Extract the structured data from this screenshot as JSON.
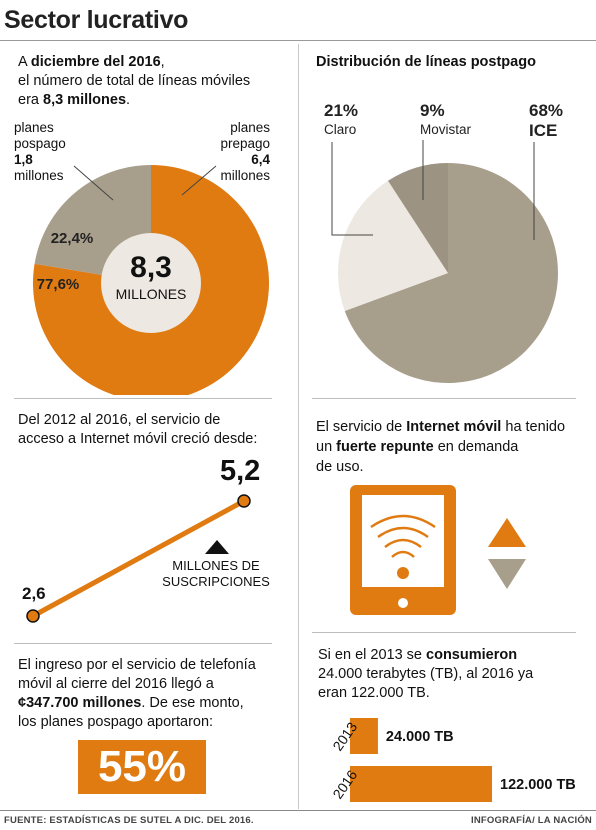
{
  "title": "Sector lucrativo",
  "footer": {
    "source": "FUENTE: ESTADÍSTICAS DE SUTEL A DIC. DEL 2016.",
    "credit": "INFOGRAFÍA/ LA NACIÓN"
  },
  "colors": {
    "orange": "#e07b12",
    "gray": "#a89e8c",
    "cream": "#ede8e1",
    "dark_gray": "#9c9382",
    "light": "#efeae3"
  },
  "lines_total": {
    "intro_pre": "A",
    "intro_bold": "diciembre del 2016",
    "intro_line2": "el número de total de líneas móviles",
    "intro_line3_pre": "era",
    "intro_line3_bold": "8,3 millones",
    "center_value": "8,3",
    "center_unit": "MILLONES",
    "pospago_label_1": "planes",
    "pospago_label_2": "pospago",
    "pospago_value": "1,8",
    "pospago_unit": "millones",
    "prepago_label_1": "planes",
    "prepago_label_2": "prepago",
    "prepago_value": "6,4",
    "prepago_unit": "millones",
    "pospago_pct": "22,4%",
    "prepago_pct": "77,6%"
  },
  "postpago_dist": {
    "heading": "Distribución de líneas postpago",
    "claro_pct": "21%",
    "claro_name": "Claro",
    "movistar_pct": "9%",
    "movistar_name": "Movistar",
    "ice_pct": "68%",
    "ice_name": "ICE"
  },
  "internet_growth": {
    "text_1": "Del 2012 al 2016, el servicio de",
    "text_2": "acceso a Internet móvil creció desde:",
    "start_value": "2,6",
    "end_value": "5,2",
    "unit_1": "MILLONES DE",
    "unit_2": "SUSCRIPCIONES"
  },
  "internet_demand": {
    "t1_pre": "El servicio de",
    "t1_bold": "Internet móvil",
    "t1_post": "ha tenido",
    "t2_pre": "un",
    "t2_bold": "fuerte repunte",
    "t2_post": "en demanda",
    "t3": "de uso."
  },
  "revenue": {
    "t1": "El ingreso por el servicio de telefonía",
    "t2": "móvil al cierre del 2016 llegó a",
    "t3_bold": "¢347.700 millones",
    "t3_post": ". De ese monto,",
    "t4": "los planes pospago aportaron:",
    "pct": "55%"
  },
  "data_consumption": {
    "t1_pre": "Si en el 2013 se",
    "t1_bold": "consumieron",
    "t2": "24.000 terabytes (TB), al 2016 ya",
    "t3": "eran 122.000 TB."
  },
  "chart_data": [
    {
      "type": "pie",
      "title": "",
      "labels": [
        "planes prepago",
        "planes pospago"
      ],
      "values": [
        77.6,
        22.4
      ],
      "center_text": "8,3 MILLONES"
    },
    {
      "type": "pie",
      "title": "Distribución de líneas postpago",
      "labels": [
        "ICE",
        "Claro",
        "Movistar"
      ],
      "values": [
        68,
        21,
        9
      ]
    },
    {
      "type": "line",
      "x": [
        2012,
        2016
      ],
      "y": [
        2.6,
        5.2
      ],
      "ylabel": "MILLONES DE SUSCRIPCIONES"
    },
    {
      "type": "bar",
      "categories": [
        "2013",
        "2016"
      ],
      "values": [
        24000,
        122000
      ],
      "value_labels": [
        "24.000 TB",
        "122.000 TB"
      ]
    }
  ]
}
